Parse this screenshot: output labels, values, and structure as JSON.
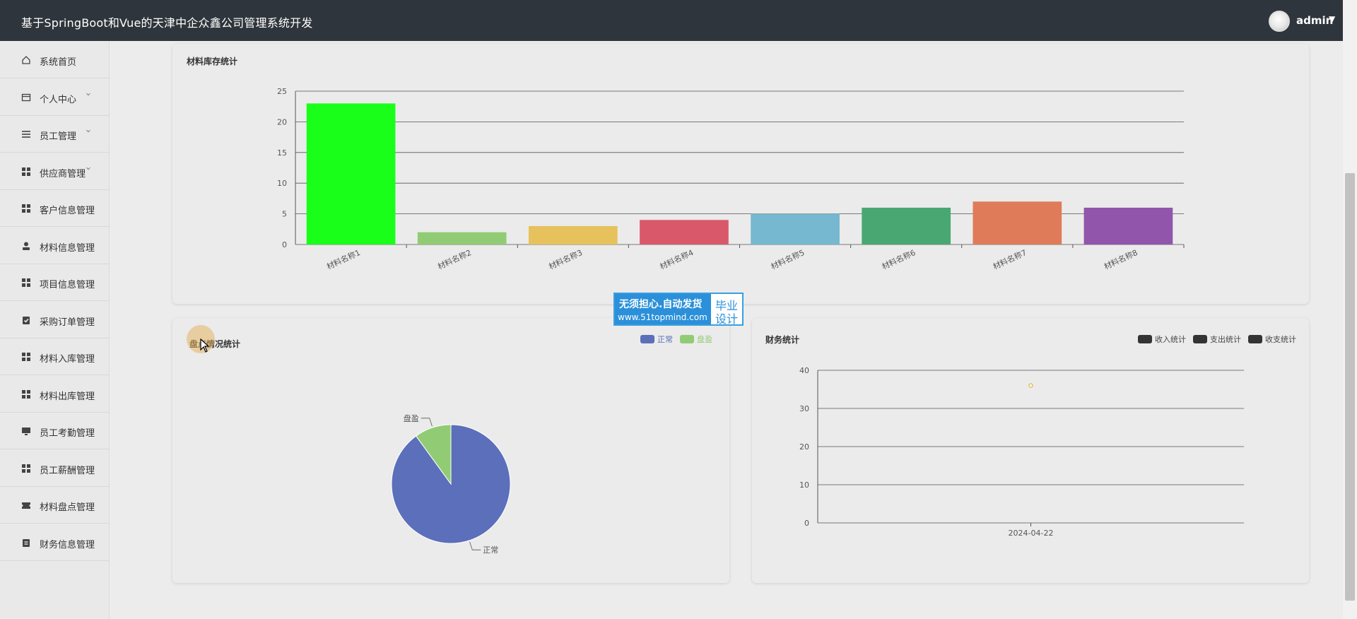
{
  "header": {
    "title": "基于SpringBoot和Vue的天津中企众鑫公司管理系统开发",
    "user": "admin",
    "caret": "▼"
  },
  "sidebar": {
    "items": [
      {
        "label": "系统首页",
        "icon": "home-icon",
        "arrow": false
      },
      {
        "label": "个人中心",
        "icon": "card-icon",
        "arrow": true
      },
      {
        "label": "员工管理",
        "icon": "list-icon",
        "arrow": true
      },
      {
        "label": "供应商管理",
        "icon": "grid-icon",
        "arrow": true
      },
      {
        "label": "客户信息管理",
        "icon": "grid-icon",
        "arrow": false
      },
      {
        "label": "材料信息管理",
        "icon": "user-icon",
        "arrow": false
      },
      {
        "label": "项目信息管理",
        "icon": "grid-icon",
        "arrow": false
      },
      {
        "label": "采购订单管理",
        "icon": "clipboard-check-icon",
        "arrow": false
      },
      {
        "label": "材料入库管理",
        "icon": "grid-icon",
        "arrow": false
      },
      {
        "label": "材料出库管理",
        "icon": "grid-icon",
        "arrow": false
      },
      {
        "label": "员工考勤管理",
        "icon": "monitor-icon",
        "arrow": false
      },
      {
        "label": "员工薪酬管理",
        "icon": "grid-icon",
        "arrow": false
      },
      {
        "label": "材料盘点管理",
        "icon": "ticket-icon",
        "arrow": false
      },
      {
        "label": "财务信息管理",
        "icon": "clipboard-icon",
        "arrow": false
      }
    ]
  },
  "badge": {
    "line1": "无须担心.自动发货",
    "line2": "www.51topmind.com",
    "right1": "毕业",
    "right2": "设计"
  },
  "inventory_card": {
    "title": "材料库存统计"
  },
  "pie_card": {
    "title": "盘点情况统计"
  },
  "finance_card": {
    "title": "财务统计"
  },
  "chart_data": [
    {
      "type": "bar",
      "title": "材料库存统计",
      "categories": [
        "材料名称1",
        "材料名称2",
        "材料名称3",
        "材料名称4",
        "材料名称5",
        "材料名称6",
        "材料名称7",
        "材料名称8"
      ],
      "values": [
        23,
        2,
        3,
        4,
        5,
        6,
        7,
        6
      ],
      "colors": [
        "#1aff1a",
        "#91cc75",
        "#e6c15c",
        "#d9596a",
        "#76b8cf",
        "#49a872",
        "#e07b5a",
        "#9155ab"
      ],
      "ylim": [
        0,
        25
      ],
      "yticks": [
        0,
        5,
        10,
        15,
        20,
        25
      ],
      "grid": true
    },
    {
      "type": "pie",
      "title": "盘点情况统计",
      "legend": "top-right",
      "slices": [
        {
          "name": "正常",
          "value": 90,
          "color": "#5b6fba"
        },
        {
          "name": "盘盈",
          "value": 10,
          "color": "#91cc75"
        }
      ]
    },
    {
      "type": "line",
      "title": "财务统计",
      "legend": "top-right",
      "x": [
        "2024-04-22"
      ],
      "series": [
        {
          "name": "收入统计",
          "values": [
            36
          ],
          "color": "#e0c060"
        },
        {
          "name": "支出统计",
          "values": [
            null
          ],
          "color": "#333333"
        },
        {
          "name": "收支统计",
          "values": [
            null
          ],
          "color": "#333333"
        }
      ],
      "ylim": [
        0,
        40
      ],
      "yticks": [
        0,
        10,
        20,
        30,
        40
      ],
      "grid": true
    }
  ]
}
